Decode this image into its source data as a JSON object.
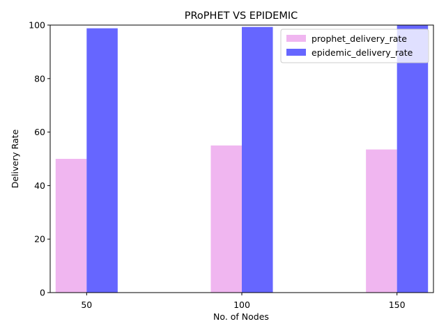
{
  "chart_data": {
    "type": "bar",
    "title": "PRoPHET VS EPIDEMIC",
    "xlabel": "No. of Nodes",
    "ylabel": "Delivery Rate",
    "categories": [
      "50",
      "100",
      "150"
    ],
    "series": [
      {
        "name": "prophet_delivery_rate",
        "values": [
          50,
          55,
          53.5
        ],
        "color": "#f0b6f0"
      },
      {
        "name": "epidemic_delivery_rate",
        "values": [
          98.8,
          99.3,
          100
        ],
        "color": "#6666ff"
      }
    ],
    "ylim": [
      0,
      100
    ],
    "yticks": [
      0,
      20,
      40,
      60,
      80,
      100
    ],
    "grid": false,
    "legend_position": "upper right"
  }
}
